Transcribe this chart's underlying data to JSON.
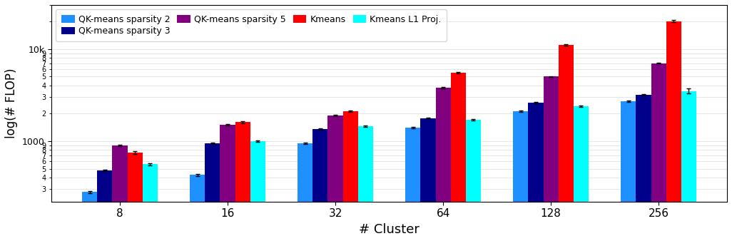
{
  "clusters": [
    8,
    16,
    32,
    64,
    128,
    256
  ],
  "series": {
    "QK-means sparsity 2": {
      "color": "#1E90FF",
      "values": [
        280,
        430,
        950,
        1400,
        2100,
        2700
      ],
      "yerr": [
        8,
        12,
        18,
        25,
        35,
        45
      ]
    },
    "QK-means sparsity 3": {
      "color": "#00008B",
      "values": [
        480,
        950,
        1350,
        1750,
        2600,
        3200
      ],
      "yerr": [
        12,
        18,
        22,
        30,
        40,
        55
      ]
    },
    "QK-means sparsity 5": {
      "color": "#800080",
      "values": [
        900,
        1500,
        1900,
        3800,
        5000,
        7000
      ],
      "yerr": [
        18,
        28,
        38,
        55,
        75,
        110
      ]
    },
    "Kmeans": {
      "color": "#FF0000",
      "values": [
        750,
        1600,
        2100,
        5500,
        11000,
        20000
      ],
      "yerr": [
        22,
        35,
        45,
        90,
        180,
        600
      ]
    },
    "Kmeans L1 Proj.": {
      "color": "#00FFFF",
      "values": [
        560,
        1000,
        1450,
        1700,
        2400,
        3500
      ],
      "yerr": [
        12,
        18,
        22,
        28,
        38,
        200
      ]
    }
  },
  "xlabel": "# Cluster",
  "ylabel": "log(# FLOP)",
  "ylim_log": [
    220,
    30000
  ],
  "title": "",
  "legend_order": [
    "QK-means sparsity 2",
    "QK-means sparsity 3",
    "QK-means sparsity 5",
    "Kmeans",
    "Kmeans L1 Proj."
  ],
  "bar_width": 0.14,
  "figsize": [
    10.26,
    3.38
  ],
  "dpi": 100,
  "legend_ncol": 4,
  "legend_row2": [
    "Kmeans L1 Proj."
  ]
}
